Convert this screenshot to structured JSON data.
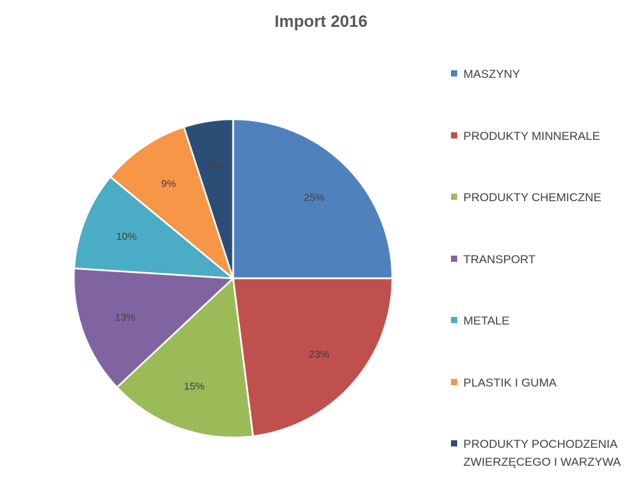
{
  "chart_data": {
    "type": "pie",
    "title": "Import 2016",
    "slices": [
      {
        "label": "MASZYNY",
        "value": 25,
        "value_label": "25%",
        "color": "#4F81BD"
      },
      {
        "label": "PRODUKTY MINNERALE",
        "value": 23,
        "value_label": "23%",
        "color": "#C0504D"
      },
      {
        "label": "PRODUKTY CHEMICZNE",
        "value": 15,
        "value_label": "15%",
        "color": "#9BBB59"
      },
      {
        "label": "TRANSPORT",
        "value": 13,
        "value_label": "13%",
        "color": "#8064A2"
      },
      {
        "label": "METALE",
        "value": 10,
        "value_label": "10%",
        "color": "#4BACC6"
      },
      {
        "label": "PLASTIK I GUMA",
        "value": 9,
        "value_label": "9%",
        "color": "#F79646"
      },
      {
        "label": "PRODUKTY POCHODZENIA ZWIERZĘCEGO I WARZYWA",
        "value": 5,
        "value_label": "5%",
        "color": "#2C4D75"
      }
    ],
    "legend_position": "right"
  }
}
